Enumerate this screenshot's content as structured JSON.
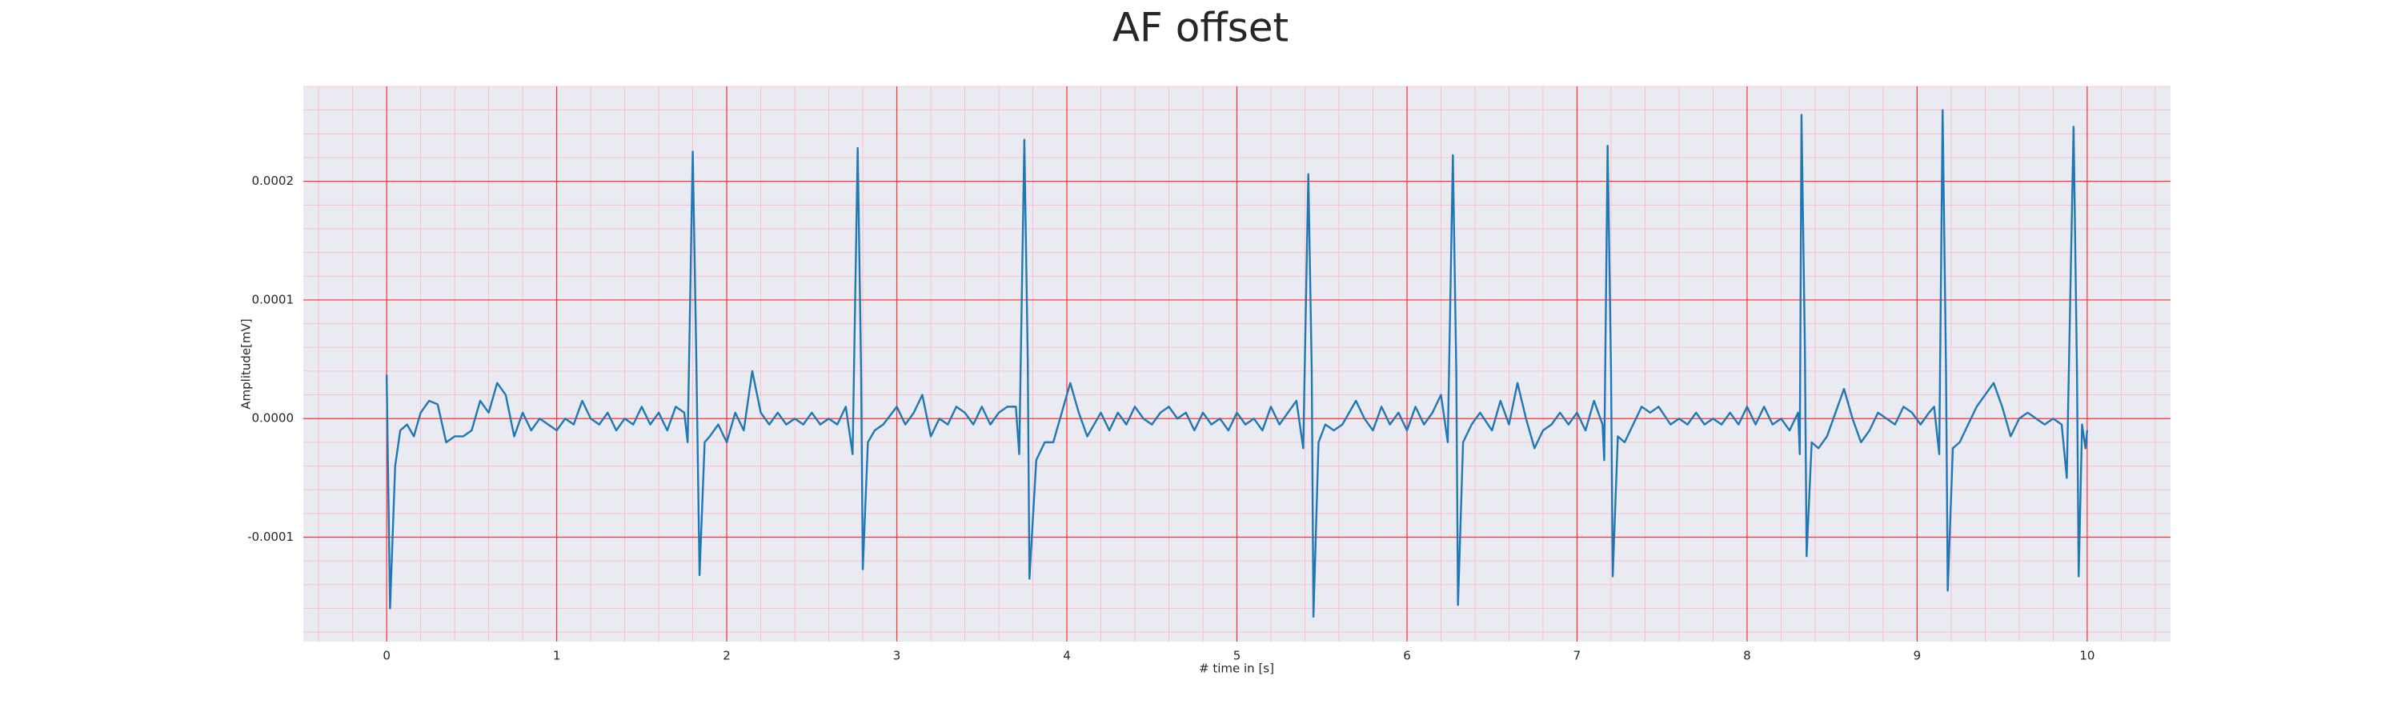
{
  "chart_data": {
    "type": "line",
    "title": "AF offset",
    "x_label": "# time in [s]",
    "y_label": "Amplitude[mV]",
    "xlim": [
      -0.49,
      10.49
    ],
    "ylim": [
      -0.000188,
      0.00028
    ],
    "xticks": [
      0,
      1,
      2,
      3,
      4,
      5,
      6,
      7,
      8,
      9,
      10
    ],
    "yticks": [
      -0.0001,
      {
        "value": 0,
        "label": "0.0000"
      },
      0.0001,
      0.0002
    ],
    "grid": true,
    "minor_grid": true,
    "series": [
      {
        "name": "AF offset",
        "color": "#1f77b4",
        "x": [
          0,
          0.02,
          0.05,
          0.08,
          0.12,
          0.16,
          0.2,
          0.25,
          0.3,
          0.35,
          0.4,
          0.45,
          0.5,
          0.55,
          0.6,
          0.65,
          0.7,
          0.75,
          0.8,
          0.85,
          0.9,
          0.95,
          1.0,
          1.05,
          1.1,
          1.15,
          1.2,
          1.25,
          1.3,
          1.35,
          1.4,
          1.45,
          1.5,
          1.55,
          1.6,
          1.65,
          1.7,
          1.75,
          1.77,
          1.8,
          1.82,
          1.84,
          1.87,
          1.9,
          1.95,
          2.0,
          2.05,
          2.1,
          2.15,
          2.2,
          2.25,
          2.3,
          2.35,
          2.4,
          2.45,
          2.5,
          2.55,
          2.6,
          2.65,
          2.7,
          2.74,
          2.77,
          2.79,
          2.8,
          2.83,
          2.87,
          2.92,
          3.0,
          3.05,
          3.1,
          3.15,
          3.2,
          3.25,
          3.3,
          3.35,
          3.4,
          3.45,
          3.5,
          3.55,
          3.6,
          3.65,
          3.7,
          3.72,
          3.75,
          3.77,
          3.78,
          3.82,
          3.87,
          3.92,
          3.97,
          4.02,
          4.07,
          4.12,
          4.2,
          4.25,
          4.3,
          4.35,
          4.4,
          4.45,
          4.5,
          4.55,
          4.6,
          4.65,
          4.7,
          4.75,
          4.8,
          4.85,
          4.9,
          4.95,
          5.0,
          5.05,
          5.1,
          5.15,
          5.2,
          5.25,
          5.3,
          5.35,
          5.39,
          5.42,
          5.44,
          5.45,
          5.48,
          5.52,
          5.57,
          5.62,
          5.7,
          5.75,
          5.8,
          5.85,
          5.9,
          5.95,
          6.0,
          6.05,
          6.1,
          6.15,
          6.2,
          6.24,
          6.27,
          6.29,
          6.3,
          6.33,
          6.38,
          6.43,
          6.5,
          6.55,
          6.6,
          6.65,
          6.7,
          6.75,
          6.8,
          6.85,
          6.9,
          6.95,
          7.0,
          7.05,
          7.1,
          7.15,
          7.16,
          7.18,
          7.2,
          7.21,
          7.24,
          7.28,
          7.33,
          7.38,
          7.43,
          7.48,
          7.55,
          7.6,
          7.65,
          7.7,
          7.75,
          7.8,
          7.85,
          7.9,
          7.95,
          8.0,
          8.05,
          8.1,
          8.15,
          8.2,
          8.25,
          8.3,
          8.31,
          8.32,
          8.34,
          8.35,
          8.38,
          8.42,
          8.47,
          8.52,
          8.57,
          8.62,
          8.67,
          8.72,
          8.77,
          8.82,
          8.87,
          8.92,
          8.97,
          9.02,
          9.07,
          9.1,
          9.13,
          9.15,
          9.17,
          9.18,
          9.21,
          9.25,
          9.3,
          9.35,
          9.4,
          9.45,
          9.5,
          9.55,
          9.6,
          9.65,
          9.7,
          9.75,
          9.8,
          9.85,
          9.88,
          9.92,
          9.94,
          9.95,
          9.97,
          9.99,
          10.0
        ],
        "values": [
          3.7e-05,
          -0.00016,
          -4e-05,
          -1e-05,
          -5e-06,
          -1.5e-05,
          5e-06,
          1.5e-05,
          1.2e-05,
          -2e-05,
          -1.5e-05,
          -1.5e-05,
          -1e-05,
          1.5e-05,
          5e-06,
          3e-05,
          2e-05,
          -1.5e-05,
          5e-06,
          -1e-05,
          0,
          -5e-06,
          -1e-05,
          0,
          -5e-06,
          1.5e-05,
          0,
          -5e-06,
          5e-06,
          -1e-05,
          0,
          -5e-06,
          1e-05,
          -5e-06,
          5e-06,
          -1e-05,
          1e-05,
          5e-06,
          -2e-05,
          0.000225,
          6e-05,
          -0.000132,
          -2e-05,
          -1.5e-05,
          -5e-06,
          -2e-05,
          5e-06,
          -1e-05,
          4e-05,
          5e-06,
          -5e-06,
          5e-06,
          -5e-06,
          0,
          -5e-06,
          5e-06,
          -5e-06,
          0,
          -5e-06,
          1e-05,
          -3e-05,
          0.000228,
          4e-05,
          -0.000127,
          -2e-05,
          -1e-05,
          -5e-06,
          1e-05,
          -5e-06,
          5e-06,
          2e-05,
          -1.5e-05,
          0,
          -5e-06,
          1e-05,
          5e-06,
          -5e-06,
          1e-05,
          -5e-06,
          5e-06,
          1e-05,
          1e-05,
          -3e-05,
          0.000235,
          5e-05,
          -0.000135,
          -3.5e-05,
          -2e-05,
          -2e-05,
          5e-06,
          3e-05,
          5e-06,
          -1.5e-05,
          5e-06,
          -1e-05,
          5e-06,
          -5e-06,
          1e-05,
          0,
          -5e-06,
          5e-06,
          1e-05,
          0,
          5e-06,
          -1e-05,
          5e-06,
          -5e-06,
          0,
          -1e-05,
          5e-06,
          -5e-06,
          0,
          -1e-05,
          1e-05,
          -5e-06,
          5e-06,
          1.5e-05,
          -2.5e-05,
          0.000206,
          4e-05,
          -0.000167,
          -2e-05,
          -5e-06,
          -1e-05,
          -5e-06,
          1.5e-05,
          0,
          -1e-05,
          1e-05,
          -5e-06,
          5e-06,
          -1e-05,
          1e-05,
          -5e-06,
          5e-06,
          2e-05,
          -2e-05,
          0.000222,
          4e-05,
          -0.000157,
          -2e-05,
          -5e-06,
          5e-06,
          -1e-05,
          1.5e-05,
          -5e-06,
          3e-05,
          0,
          -2.5e-05,
          -1e-05,
          -5e-06,
          5e-06,
          -5e-06,
          5e-06,
          -1e-05,
          1.5e-05,
          -5e-06,
          -3.5e-05,
          0.00023,
          4e-05,
          -0.000133,
          -1.5e-05,
          -2e-05,
          -5e-06,
          1e-05,
          5e-06,
          1e-05,
          -5e-06,
          0,
          -5e-06,
          5e-06,
          -5e-06,
          0,
          -5e-06,
          5e-06,
          -5e-06,
          1e-05,
          -5e-06,
          1e-05,
          -5e-06,
          0,
          -1e-05,
          5e-06,
          -3e-05,
          0.000256,
          6e-05,
          -0.000116,
          -2e-05,
          -2.5e-05,
          -1.5e-05,
          5e-06,
          2.5e-05,
          0,
          -2e-05,
          -1e-05,
          5e-06,
          0,
          -5e-06,
          1e-05,
          5e-06,
          -5e-06,
          5e-06,
          1e-05,
          -3e-05,
          0.00026,
          4e-05,
          -0.000145,
          -2.5e-05,
          -2e-05,
          -5e-06,
          1e-05,
          2e-05,
          3e-05,
          1e-05,
          -1.5e-05,
          0,
          5e-06,
          0,
          -5e-06,
          0,
          -5e-06,
          -5e-05,
          0.000246,
          4e-05,
          -0.000133,
          -5e-06,
          -2.5e-05,
          -1e-05
        ]
      }
    ]
  }
}
